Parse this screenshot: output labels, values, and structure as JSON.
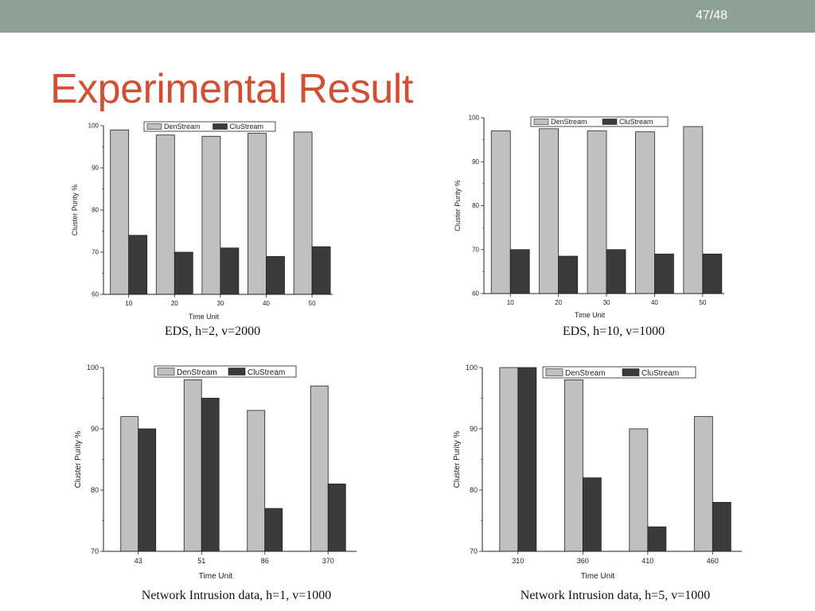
{
  "slide": {
    "page_number": "47/48",
    "title": "Experimental Result",
    "captions": [
      "EDS, h=2, v=2000",
      "EDS, h=10, v=1000",
      "Network Intrusion data, h=1, v=1000",
      "Network Intrusion data, h=5, v=1000"
    ]
  },
  "colors": {
    "topbar": "#8fa195",
    "title": "#d14f33",
    "denstream": "#c0c0c0",
    "clustream": "#3a3a3a"
  },
  "chart_data": [
    {
      "type": "bar",
      "categories": [
        "10",
        "20",
        "30",
        "40",
        "50"
      ],
      "series": [
        {
          "name": "DenStream",
          "values": [
            99,
            97.8,
            97.5,
            98.2,
            98.5
          ]
        },
        {
          "name": "CluStream",
          "values": [
            74,
            70,
            71,
            69,
            71.3
          ]
        }
      ],
      "xlabel": "Time Unit",
      "ylabel": "Cluster Purity %",
      "ylim": [
        60,
        100
      ],
      "yticks": [
        60,
        70,
        80,
        90,
        100
      ],
      "grid": false,
      "legend": "top"
    },
    {
      "type": "bar",
      "categories": [
        "10",
        "20",
        "30",
        "40",
        "50"
      ],
      "series": [
        {
          "name": "DenStream",
          "values": [
            97,
            97.5,
            97,
            96.8,
            98
          ]
        },
        {
          "name": "CluStream",
          "values": [
            70,
            68.5,
            70,
            69,
            69
          ]
        }
      ],
      "xlabel": "Time Unit",
      "ylabel": "Cluster Purity %",
      "ylim": [
        60,
        100
      ],
      "yticks": [
        60,
        70,
        80,
        90,
        100
      ],
      "grid": false,
      "legend": "top"
    },
    {
      "type": "bar",
      "categories": [
        "43",
        "51",
        "86",
        "370"
      ],
      "series": [
        {
          "name": "DenStream",
          "values": [
            92,
            98,
            93,
            97
          ]
        },
        {
          "name": "CluStream",
          "values": [
            90,
            95,
            77,
            81
          ]
        }
      ],
      "xlabel": "Time Unit",
      "ylabel": "Cluster Purity %",
      "ylim": [
        70,
        100
      ],
      "yticks": [
        70,
        80,
        90,
        100
      ],
      "grid": false,
      "legend": "top-right"
    },
    {
      "type": "bar",
      "categories": [
        "310",
        "360",
        "410",
        "460"
      ],
      "series": [
        {
          "name": "DenStream",
          "values": [
            100,
            98,
            90,
            92
          ]
        },
        {
          "name": "CluStream",
          "values": [
            100,
            82,
            74,
            78
          ]
        }
      ],
      "xlabel": "Time Unit",
      "ylabel": "Cluster Purity %",
      "ylim": [
        70,
        100
      ],
      "yticks": [
        70,
        80,
        90,
        100
      ],
      "grid": false,
      "legend": "top-right"
    }
  ]
}
